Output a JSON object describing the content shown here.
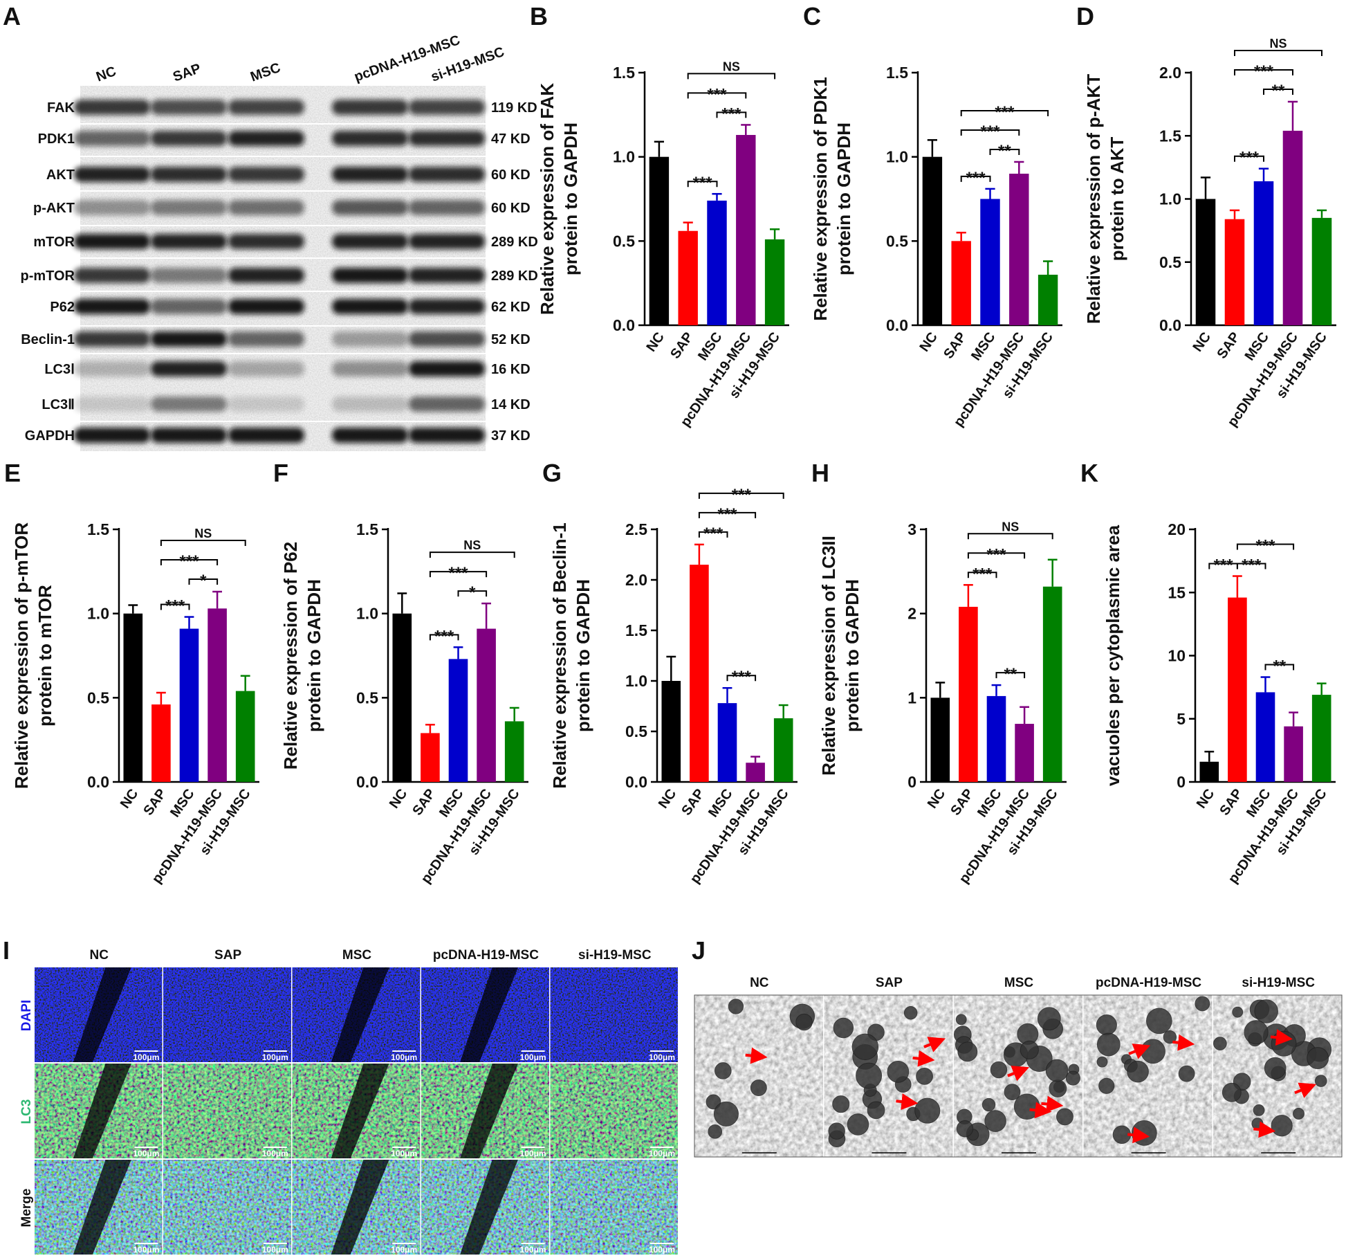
{
  "blot": {
    "panel_label": "A",
    "lanes": [
      "NC",
      "SAP",
      "MSC",
      "pcDNA-H19-MSC",
      "si-H19-MSC"
    ],
    "rows": [
      {
        "label": "FAK",
        "size": "119 KD"
      },
      {
        "label": "PDK1",
        "size": "47 KD"
      },
      {
        "label": "AKT",
        "size": "60 KD"
      },
      {
        "label": "p-AKT",
        "size": "60 KD"
      },
      {
        "label": "mTOR",
        "size": "289 KD"
      },
      {
        "label": "p-mTOR",
        "size": "289 KD"
      },
      {
        "label": "P62",
        "size": "62 KD"
      },
      {
        "label": "Beclin-1",
        "size": "52 KD"
      },
      {
        "label": "LC3Ⅰ",
        "size": "16 KD"
      },
      {
        "label": "LC3Ⅱ",
        "size": "14 KD"
      },
      {
        "label": "GAPDH",
        "size": "37 KD"
      }
    ]
  },
  "chart_data": [
    {
      "type": "bar",
      "panel_label": "B",
      "ylabel": [
        "Relative expression of FAK",
        "protein to GAPDH"
      ],
      "categories": [
        "NC",
        "SAP",
        "MSC",
        "pcDNA-H19-MSC",
        "si-H19-MSC"
      ],
      "values": [
        1.0,
        0.56,
        0.74,
        1.13,
        0.51
      ],
      "errors": [
        0.09,
        0.05,
        0.04,
        0.06,
        0.06
      ],
      "colors": [
        "#000000",
        "#ff0000",
        "#0000cc",
        "#800080",
        "#008000"
      ],
      "ylim": [
        0,
        1.5
      ],
      "yticks": [
        {
          "value": 0,
          "label": "0.0"
        },
        0.5,
        {
          "value": 1,
          "label": "1.0"
        },
        1.5
      ],
      "comparisons": [
        {
          "groups": [
            1,
            2
          ],
          "label": "***"
        },
        {
          "groups": [
            2,
            3
          ],
          "label": "***"
        },
        {
          "groups": [
            1,
            3
          ],
          "label": "***"
        },
        {
          "groups": [
            1,
            4
          ],
          "label": "NS"
        }
      ]
    },
    {
      "type": "bar",
      "panel_label": "C",
      "ylabel": [
        "Relative expression of PDK1",
        "protein to GAPDH"
      ],
      "categories": [
        "NC",
        "SAP",
        "MSC",
        "pcDNA-H19-MSC",
        "si-H19-MSC"
      ],
      "values": [
        1.0,
        0.5,
        0.75,
        0.9,
        0.3
      ],
      "errors": [
        0.1,
        0.05,
        0.06,
        0.07,
        0.08
      ],
      "colors": [
        "#000000",
        "#ff0000",
        "#0000cc",
        "#800080",
        "#008000"
      ],
      "ylim": [
        0,
        1.5
      ],
      "yticks": [
        {
          "value": 0,
          "label": "0.0"
        },
        0.5,
        {
          "value": 1,
          "label": "1.0"
        },
        1.5
      ],
      "comparisons": [
        {
          "groups": [
            1,
            2
          ],
          "label": "***"
        },
        {
          "groups": [
            2,
            3
          ],
          "label": "**"
        },
        {
          "groups": [
            1,
            3
          ],
          "label": "***"
        },
        {
          "groups": [
            1,
            4
          ],
          "label": "***"
        }
      ]
    },
    {
      "type": "bar",
      "panel_label": "D",
      "ylabel": [
        "Relative expression of p-AKT",
        "protein to AKT"
      ],
      "categories": [
        "NC",
        "SAP",
        "MSC",
        "pcDNA-H19-MSC",
        "si-H19-MSC"
      ],
      "values": [
        1.0,
        0.84,
        1.14,
        1.54,
        0.85
      ],
      "errors": [
        0.17,
        0.07,
        0.1,
        0.23,
        0.06
      ],
      "colors": [
        "#000000",
        "#ff0000",
        "#0000cc",
        "#800080",
        "#008000"
      ],
      "ylim": [
        0,
        2
      ],
      "yticks": [
        {
          "value": 0,
          "label": "0.0"
        },
        0.5,
        {
          "value": 1,
          "label": "1.0"
        },
        1.5,
        {
          "value": 2,
          "label": "2.0"
        }
      ],
      "comparisons": [
        {
          "groups": [
            1,
            2
          ],
          "label": "***"
        },
        {
          "groups": [
            2,
            3
          ],
          "label": "**"
        },
        {
          "groups": [
            1,
            3
          ],
          "label": "***"
        },
        {
          "groups": [
            1,
            4
          ],
          "label": "NS"
        }
      ]
    },
    {
      "type": "bar",
      "panel_label": "E",
      "ylabel": [
        "Relative expression of p-mTOR",
        "protein to mTOR"
      ],
      "categories": [
        "NC",
        "SAP",
        "MSC",
        "pcDNA-H19-MSC",
        "si-H19-MSC"
      ],
      "values": [
        1.0,
        0.46,
        0.91,
        1.03,
        0.54
      ],
      "errors": [
        0.05,
        0.07,
        0.07,
        0.1,
        0.09
      ],
      "colors": [
        "#000000",
        "#ff0000",
        "#0000cc",
        "#800080",
        "#008000"
      ],
      "ylim": [
        0,
        1.5
      ],
      "yticks": [
        {
          "value": 0,
          "label": "0.0"
        },
        0.5,
        {
          "value": 1,
          "label": "1.0"
        },
        1.5
      ],
      "comparisons": [
        {
          "groups": [
            1,
            2
          ],
          "label": "***"
        },
        {
          "groups": [
            2,
            3
          ],
          "label": "*"
        },
        {
          "groups": [
            1,
            3
          ],
          "label": "***"
        },
        {
          "groups": [
            1,
            4
          ],
          "label": "NS"
        }
      ]
    },
    {
      "type": "bar",
      "panel_label": "F",
      "ylabel": [
        "Relative expression of P62",
        "protein to GAPDH"
      ],
      "categories": [
        "NC",
        "SAP",
        "MSC",
        "pcDNA-H19-MSC",
        "si-H19-MSC"
      ],
      "values": [
        1.0,
        0.29,
        0.73,
        0.91,
        0.36
      ],
      "errors": [
        0.12,
        0.05,
        0.07,
        0.15,
        0.08
      ],
      "colors": [
        "#000000",
        "#ff0000",
        "#0000cc",
        "#800080",
        "#008000"
      ],
      "ylim": [
        0,
        1.5
      ],
      "yticks": [
        {
          "value": 0,
          "label": "0.0"
        },
        0.5,
        {
          "value": 1,
          "label": "1.0"
        },
        1.5
      ],
      "comparisons": [
        {
          "groups": [
            1,
            2
          ],
          "label": "***"
        },
        {
          "groups": [
            2,
            3
          ],
          "label": "*"
        },
        {
          "groups": [
            1,
            3
          ],
          "label": "***"
        },
        {
          "groups": [
            1,
            4
          ],
          "label": "NS"
        }
      ]
    },
    {
      "type": "bar",
      "panel_label": "G",
      "ylabel": [
        "Relative expression of Beclin-1",
        "protein to GAPDH"
      ],
      "categories": [
        "NC",
        "SAP",
        "MSC",
        "pcDNA-H19-MSC",
        "si-H19-MSC"
      ],
      "values": [
        1.0,
        2.15,
        0.78,
        0.19,
        0.63
      ],
      "errors": [
        0.24,
        0.2,
        0.15,
        0.06,
        0.13
      ],
      "colors": [
        "#000000",
        "#ff0000",
        "#0000cc",
        "#800080",
        "#008000"
      ],
      "ylim": [
        0,
        2.5
      ],
      "yticks": [
        {
          "value": 0,
          "label": "0.0"
        },
        0.5,
        {
          "value": 1,
          "label": "1.0"
        },
        1.5,
        {
          "value": 2,
          "label": "2.0"
        },
        2.5
      ],
      "comparisons": [
        {
          "groups": [
            2,
            3
          ],
          "label": "***"
        },
        {
          "groups": [
            1,
            2
          ],
          "label": "***"
        },
        {
          "groups": [
            1,
            3
          ],
          "label": "***"
        },
        {
          "groups": [
            1,
            4
          ],
          "label": "***"
        }
      ]
    },
    {
      "type": "bar",
      "panel_label": "H",
      "ylabel": [
        "Relative expression of LC3II",
        "protein to GAPDH"
      ],
      "categories": [
        "NC",
        "SAP",
        "MSC",
        "pcDNA-H19-MSC",
        "si-H19-MSC"
      ],
      "values": [
        1.0,
        2.08,
        1.02,
        0.69,
        2.32
      ],
      "errors": [
        0.18,
        0.26,
        0.13,
        0.2,
        0.32
      ],
      "colors": [
        "#000000",
        "#ff0000",
        "#0000cc",
        "#800080",
        "#008000"
      ],
      "ylim": [
        0,
        3
      ],
      "yticks": [
        0,
        1,
        2,
        3
      ],
      "comparisons": [
        {
          "groups": [
            2,
            3
          ],
          "label": "**"
        },
        {
          "groups": [
            1,
            2
          ],
          "label": "***"
        },
        {
          "groups": [
            1,
            3
          ],
          "label": "***"
        },
        {
          "groups": [
            1,
            4
          ],
          "label": "NS"
        }
      ]
    },
    {
      "type": "bar",
      "panel_label": "K",
      "ylabel": [
        "vacuoles per cytoplasmic area"
      ],
      "categories": [
        "NC",
        "SAP",
        "MSC",
        "pcDNA-H19-MSC",
        "si-H19-MSC"
      ],
      "values": [
        1.6,
        14.6,
        7.1,
        4.4,
        6.9
      ],
      "errors": [
        0.8,
        1.7,
        1.2,
        1.1,
        0.9
      ],
      "colors": [
        "#000000",
        "#ff0000",
        "#0000cc",
        "#800080",
        "#008000"
      ],
      "ylim": [
        0,
        20
      ],
      "yticks": [
        0,
        5,
        10,
        15,
        20
      ],
      "comparisons": [
        {
          "groups": [
            2,
            3
          ],
          "label": "**"
        },
        {
          "groups": [
            0,
            1
          ],
          "label": "***"
        },
        {
          "groups": [
            1,
            2
          ],
          "label": "***"
        },
        {
          "groups": [
            1,
            3
          ],
          "label": "***"
        }
      ]
    }
  ],
  "fluorescence": {
    "panel_label": "I",
    "columns": [
      "NC",
      "SAP",
      "MSC",
      "pcDNA-H19-MSC",
      "si-H19-MSC"
    ],
    "rows": [
      "DAPI",
      "LC3",
      "Merge"
    ],
    "scale_bar": "100μm"
  },
  "electron_microscopy": {
    "panel_label": "J",
    "columns": [
      "NC",
      "SAP",
      "MSC",
      "pcDNA-H19-MSC",
      "si-H19-MSC"
    ]
  }
}
